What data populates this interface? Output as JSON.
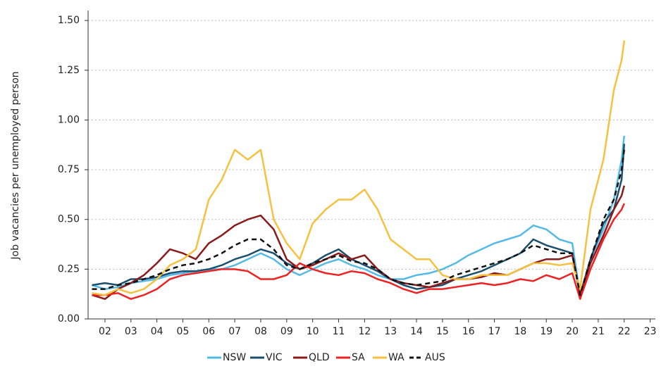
{
  "chart_data": {
    "type": "line",
    "y_label": "Job vacancies per unemployed person",
    "x": [
      2001.5,
      2002,
      2002.5,
      2003,
      2003.5,
      2004,
      2004.5,
      2005,
      2005.5,
      2006,
      2006.5,
      2007,
      2007.5,
      2008,
      2008.5,
      2009,
      2009.5,
      2010,
      2010.5,
      2011,
      2011.5,
      2012,
      2012.5,
      2013,
      2013.5,
      2014,
      2014.5,
      2015,
      2015.5,
      2016,
      2016.5,
      2017,
      2017.5,
      2018,
      2018.5,
      2019,
      2019.5,
      2020,
      2020.3,
      2020.7,
      2021.2,
      2021.6,
      2021.9,
      2022.0
    ],
    "series": [
      {
        "name": "NSW",
        "color": "#55b9e6",
        "dashed": false,
        "values": [
          0.17,
          0.15,
          0.16,
          0.18,
          0.19,
          0.2,
          0.22,
          0.23,
          0.24,
          0.25,
          0.25,
          0.27,
          0.3,
          0.33,
          0.3,
          0.25,
          0.22,
          0.25,
          0.28,
          0.3,
          0.27,
          0.25,
          0.22,
          0.2,
          0.2,
          0.22,
          0.23,
          0.25,
          0.28,
          0.32,
          0.35,
          0.38,
          0.4,
          0.42,
          0.47,
          0.45,
          0.4,
          0.38,
          0.12,
          0.3,
          0.45,
          0.6,
          0.8,
          0.92
        ]
      },
      {
        "name": "VIC",
        "color": "#1b4f6e",
        "dashed": false,
        "values": [
          0.17,
          0.18,
          0.17,
          0.2,
          0.2,
          0.21,
          0.23,
          0.24,
          0.24,
          0.25,
          0.27,
          0.3,
          0.32,
          0.35,
          0.33,
          0.28,
          0.25,
          0.28,
          0.32,
          0.35,
          0.3,
          0.27,
          0.24,
          0.2,
          0.17,
          0.15,
          0.16,
          0.17,
          0.2,
          0.22,
          0.24,
          0.27,
          0.3,
          0.33,
          0.4,
          0.37,
          0.35,
          0.33,
          0.12,
          0.3,
          0.48,
          0.55,
          0.7,
          0.88
        ]
      },
      {
        "name": "QLD",
        "color": "#8b1a1a",
        "dashed": false,
        "values": [
          0.12,
          0.1,
          0.15,
          0.18,
          0.22,
          0.28,
          0.35,
          0.33,
          0.3,
          0.38,
          0.42,
          0.47,
          0.5,
          0.52,
          0.45,
          0.3,
          0.25,
          0.27,
          0.3,
          0.33,
          0.3,
          0.32,
          0.25,
          0.2,
          0.18,
          0.17,
          0.16,
          0.18,
          0.2,
          0.2,
          0.21,
          0.23,
          0.22,
          0.25,
          0.28,
          0.3,
          0.3,
          0.32,
          0.12,
          0.28,
          0.42,
          0.55,
          0.62,
          0.67
        ]
      },
      {
        "name": "SA",
        "color": "#ee2222",
        "dashed": false,
        "values": [
          0.12,
          0.12,
          0.13,
          0.1,
          0.12,
          0.15,
          0.2,
          0.22,
          0.23,
          0.24,
          0.25,
          0.25,
          0.24,
          0.2,
          0.2,
          0.22,
          0.28,
          0.25,
          0.23,
          0.22,
          0.24,
          0.23,
          0.2,
          0.18,
          0.15,
          0.13,
          0.15,
          0.15,
          0.16,
          0.17,
          0.18,
          0.17,
          0.18,
          0.2,
          0.19,
          0.22,
          0.2,
          0.23,
          0.1,
          0.25,
          0.4,
          0.5,
          0.55,
          0.58
        ]
      },
      {
        "name": "WA",
        "color": "#f6c141",
        "dashed": false,
        "values": [
          0.13,
          0.12,
          0.15,
          0.13,
          0.15,
          0.2,
          0.27,
          0.3,
          0.35,
          0.6,
          0.7,
          0.85,
          0.8,
          0.85,
          0.5,
          0.38,
          0.3,
          0.48,
          0.55,
          0.6,
          0.6,
          0.65,
          0.55,
          0.4,
          0.35,
          0.3,
          0.3,
          0.22,
          0.2,
          0.2,
          0.22,
          0.22,
          0.22,
          0.25,
          0.28,
          0.28,
          0.27,
          0.28,
          0.15,
          0.55,
          0.8,
          1.15,
          1.3,
          1.4
        ]
      },
      {
        "name": "AUS",
        "color": "#111111",
        "dashed": true,
        "values": [
          0.15,
          0.15,
          0.17,
          0.18,
          0.2,
          0.22,
          0.25,
          0.27,
          0.28,
          0.3,
          0.33,
          0.37,
          0.4,
          0.4,
          0.35,
          0.27,
          0.25,
          0.28,
          0.3,
          0.32,
          0.29,
          0.28,
          0.25,
          0.2,
          0.18,
          0.17,
          0.18,
          0.19,
          0.22,
          0.24,
          0.26,
          0.28,
          0.3,
          0.33,
          0.37,
          0.35,
          0.33,
          0.33,
          0.12,
          0.3,
          0.5,
          0.6,
          0.75,
          0.85
        ]
      }
    ],
    "xlim": [
      2001.35,
      2023.2
    ],
    "xticks": [
      {
        "value": 2002,
        "label": "02"
      },
      {
        "value": 2003,
        "label": "03"
      },
      {
        "value": 2004,
        "label": "04"
      },
      {
        "value": 2005,
        "label": "05"
      },
      {
        "value": 2006,
        "label": "06"
      },
      {
        "value": 2007,
        "label": "07"
      },
      {
        "value": 2008,
        "label": "08"
      },
      {
        "value": 2009,
        "label": "09"
      },
      {
        "value": 2010,
        "label": "10"
      },
      {
        "value": 2011,
        "label": "11"
      },
      {
        "value": 2012,
        "label": "12"
      },
      {
        "value": 2013,
        "label": "13"
      },
      {
        "value": 2014,
        "label": "14"
      },
      {
        "value": 2015,
        "label": "15"
      },
      {
        "value": 2016,
        "label": "16"
      },
      {
        "value": 2017,
        "label": "17"
      },
      {
        "value": 2018,
        "label": "18"
      },
      {
        "value": 2019,
        "label": "19"
      },
      {
        "value": 2020,
        "label": "20"
      },
      {
        "value": 2021,
        "label": "21"
      },
      {
        "value": 2022,
        "label": "22"
      },
      {
        "value": 2023,
        "label": "23"
      }
    ],
    "ylim": [
      0,
      1.55
    ],
    "yticks": [
      {
        "value": 0,
        "label": "0.00"
      },
      0.25,
      {
        "value": 0.5,
        "label": "0.50"
      },
      0.75,
      {
        "value": 1,
        "label": "1.00"
      },
      1.25,
      {
        "value": 1.5,
        "label": "1.50"
      }
    ],
    "grid": true,
    "legend": "bottom"
  }
}
